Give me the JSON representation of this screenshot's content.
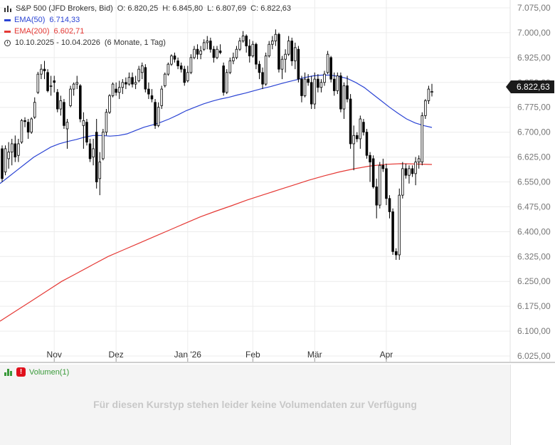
{
  "legend": {
    "instrument": "S&P 500 (JFD Brokers, Bid)",
    "open": "O: 6.820,25",
    "high": "H: 6.845,80",
    "low": "L: 6.807,69",
    "close": "C: 6.822,63",
    "ema50_label": "EMA(50)",
    "ema50_value": "6.714,33",
    "ema200_label": "EMA(200)",
    "ema200_value": "6.602,71",
    "range": "10.10.2025 - 10.04.2026",
    "period": "(6 Monate, 1 Tag)"
  },
  "colors": {
    "candle": "#000000",
    "ema50": "#2b44d4",
    "ema200": "#e53935",
    "grid": "#ececec",
    "volume": "#3a9a3a",
    "warning": "#e0101c"
  },
  "last_price_flag": "6.822,63",
  "volume_panel": {
    "title": "Volumen(1)",
    "message": "Für diesen Kurstyp stehen leider keine Volumendaten zur Verfügung"
  },
  "chart_data": {
    "type": "candlestick",
    "ylim": [
      6000,
      7100
    ],
    "y_ticks": [
      {
        "value": 7075,
        "label": "7.075,00"
      },
      {
        "value": 7000,
        "label": "7.000,00"
      },
      {
        "value": 6925,
        "label": "6.925,00"
      },
      {
        "value": 6850,
        "label": "6.850,00"
      },
      {
        "value": 6775,
        "label": "6.775,00"
      },
      {
        "value": 6700,
        "label": "6.700,00"
      },
      {
        "value": 6625,
        "label": "6.625,00"
      },
      {
        "value": 6550,
        "label": "6.550,00"
      },
      {
        "value": 6475,
        "label": "6.475,00"
      },
      {
        "value": 6400,
        "label": "6.400,00"
      },
      {
        "value": 6325,
        "label": "6.325,00"
      },
      {
        "value": 6250,
        "label": "6.250,00"
      },
      {
        "value": 6175,
        "label": "6.175,00"
      },
      {
        "value": 6100,
        "label": "6.100,00"
      },
      {
        "value": 6025,
        "label": "6.025,00"
      }
    ],
    "x_ticks": [
      {
        "date": "2025-11-01",
        "label": "Nov"
      },
      {
        "date": "2025-12-01",
        "label": "Dez"
      },
      {
        "date": "2026-01-01",
        "label": "Jan '26"
      },
      {
        "date": "2026-02-01",
        "label": "Feb"
      },
      {
        "date": "2026-03-01",
        "label": "Mär"
      },
      {
        "date": "2026-04-01",
        "label": "Apr"
      }
    ],
    "candles": [
      {
        "date": "2025-10-10",
        "o": 6650,
        "h": 6660,
        "l": 6550,
        "c": 6560
      },
      {
        "date": "2025-10-13",
        "o": 6580,
        "h": 6660,
        "l": 6570,
        "c": 6650
      },
      {
        "date": "2025-10-14",
        "o": 6620,
        "h": 6670,
        "l": 6590,
        "c": 6640
      },
      {
        "date": "2025-10-15",
        "o": 6640,
        "h": 6680,
        "l": 6600,
        "c": 6665
      },
      {
        "date": "2025-10-16",
        "o": 6665,
        "h": 6690,
        "l": 6610,
        "c": 6625
      },
      {
        "date": "2025-10-17",
        "o": 6630,
        "h": 6680,
        "l": 6610,
        "c": 6665
      },
      {
        "date": "2025-10-20",
        "o": 6670,
        "h": 6740,
        "l": 6665,
        "c": 6735
      },
      {
        "date": "2025-10-21",
        "o": 6735,
        "h": 6745,
        "l": 6715,
        "c": 6732
      },
      {
        "date": "2025-10-22",
        "o": 6730,
        "h": 6740,
        "l": 6680,
        "c": 6700
      },
      {
        "date": "2025-10-23",
        "o": 6700,
        "h": 6745,
        "l": 6695,
        "c": 6740
      },
      {
        "date": "2025-10-24",
        "o": 6745,
        "h": 6805,
        "l": 6740,
        "c": 6790
      },
      {
        "date": "2025-10-27",
        "o": 6820,
        "h": 6882,
        "l": 6815,
        "c": 6875
      },
      {
        "date": "2025-10-28",
        "o": 6875,
        "h": 6905,
        "l": 6860,
        "c": 6890
      },
      {
        "date": "2025-10-29",
        "o": 6890,
        "h": 6915,
        "l": 6860,
        "c": 6885
      },
      {
        "date": "2025-10-30",
        "o": 6880,
        "h": 6890,
        "l": 6820,
        "c": 6825
      },
      {
        "date": "2025-10-31",
        "o": 6840,
        "h": 6870,
        "l": 6810,
        "c": 6840
      },
      {
        "date": "2025-11-03",
        "o": 6855,
        "h": 6870,
        "l": 6820,
        "c": 6850
      },
      {
        "date": "2025-11-04",
        "o": 6820,
        "h": 6830,
        "l": 6760,
        "c": 6770
      },
      {
        "date": "2025-11-05",
        "o": 6770,
        "h": 6810,
        "l": 6750,
        "c": 6795
      },
      {
        "date": "2025-11-06",
        "o": 6790,
        "h": 6800,
        "l": 6710,
        "c": 6720
      },
      {
        "date": "2025-11-07",
        "o": 6710,
        "h": 6740,
        "l": 6650,
        "c": 6730
      },
      {
        "date": "2025-11-10",
        "o": 6780,
        "h": 6840,
        "l": 6775,
        "c": 6830
      },
      {
        "date": "2025-11-11",
        "o": 6830,
        "h": 6850,
        "l": 6810,
        "c": 6845
      },
      {
        "date": "2025-11-12",
        "o": 6845,
        "h": 6870,
        "l": 6830,
        "c": 6850
      },
      {
        "date": "2025-11-13",
        "o": 6840,
        "h": 6845,
        "l": 6730,
        "c": 6740
      },
      {
        "date": "2025-11-14",
        "o": 6720,
        "h": 6760,
        "l": 6650,
        "c": 6735
      },
      {
        "date": "2025-11-17",
        "o": 6730,
        "h": 6740,
        "l": 6660,
        "c": 6670
      },
      {
        "date": "2025-11-18",
        "o": 6665,
        "h": 6680,
        "l": 6610,
        "c": 6620
      },
      {
        "date": "2025-11-19",
        "o": 6625,
        "h": 6680,
        "l": 6600,
        "c": 6650
      },
      {
        "date": "2025-11-20",
        "o": 6700,
        "h": 6740,
        "l": 6530,
        "c": 6550
      },
      {
        "date": "2025-11-21",
        "o": 6560,
        "h": 6640,
        "l": 6510,
        "c": 6610
      },
      {
        "date": "2025-11-24",
        "o": 6620,
        "h": 6710,
        "l": 6615,
        "c": 6700
      },
      {
        "date": "2025-11-25",
        "o": 6700,
        "h": 6770,
        "l": 6690,
        "c": 6760
      },
      {
        "date": "2025-11-26",
        "o": 6760,
        "h": 6815,
        "l": 6755,
        "c": 6810
      },
      {
        "date": "2025-11-28",
        "o": 6810,
        "h": 6850,
        "l": 6805,
        "c": 6845
      },
      {
        "date": "2025-12-01",
        "o": 6830,
        "h": 6850,
        "l": 6810,
        "c": 6820
      },
      {
        "date": "2025-12-02",
        "o": 6820,
        "h": 6855,
        "l": 6800,
        "c": 6835
      },
      {
        "date": "2025-12-03",
        "o": 6835,
        "h": 6860,
        "l": 6815,
        "c": 6850
      },
      {
        "date": "2025-12-04",
        "o": 6850,
        "h": 6865,
        "l": 6830,
        "c": 6845
      },
      {
        "date": "2025-12-05",
        "o": 6845,
        "h": 6880,
        "l": 6840,
        "c": 6865
      },
      {
        "date": "2025-12-08",
        "o": 6865,
        "h": 6880,
        "l": 6835,
        "c": 6845
      },
      {
        "date": "2025-12-09",
        "o": 6845,
        "h": 6870,
        "l": 6830,
        "c": 6850
      },
      {
        "date": "2025-12-10",
        "o": 6855,
        "h": 6900,
        "l": 6850,
        "c": 6890
      },
      {
        "date": "2025-12-11",
        "o": 6880,
        "h": 6910,
        "l": 6860,
        "c": 6900
      },
      {
        "date": "2025-12-12",
        "o": 6895,
        "h": 6905,
        "l": 6820,
        "c": 6830
      },
      {
        "date": "2025-12-15",
        "o": 6830,
        "h": 6850,
        "l": 6800,
        "c": 6815
      },
      {
        "date": "2025-12-16",
        "o": 6810,
        "h": 6830,
        "l": 6790,
        "c": 6800
      },
      {
        "date": "2025-12-17",
        "o": 6790,
        "h": 6800,
        "l": 6710,
        "c": 6720
      },
      {
        "date": "2025-12-18",
        "o": 6720,
        "h": 6790,
        "l": 6715,
        "c": 6775
      },
      {
        "date": "2025-12-19",
        "o": 6780,
        "h": 6840,
        "l": 6770,
        "c": 6830
      },
      {
        "date": "2025-12-22",
        "o": 6840,
        "h": 6880,
        "l": 6835,
        "c": 6875
      },
      {
        "date": "2025-12-23",
        "o": 6875,
        "h": 6910,
        "l": 6870,
        "c": 6905
      },
      {
        "date": "2025-12-24",
        "o": 6905,
        "h": 6935,
        "l": 6900,
        "c": 6930
      },
      {
        "date": "2025-12-26",
        "o": 6930,
        "h": 6940,
        "l": 6910,
        "c": 6920
      },
      {
        "date": "2025-12-29",
        "o": 6915,
        "h": 6925,
        "l": 6890,
        "c": 6900
      },
      {
        "date": "2025-12-30",
        "o": 6900,
        "h": 6910,
        "l": 6880,
        "c": 6890
      },
      {
        "date": "2025-12-31",
        "o": 6890,
        "h": 6900,
        "l": 6840,
        "c": 6850
      },
      {
        "date": "2026-01-02",
        "o": 6855,
        "h": 6900,
        "l": 6850,
        "c": 6880
      },
      {
        "date": "2026-01-05",
        "o": 6880,
        "h": 6935,
        "l": 6875,
        "c": 6925
      },
      {
        "date": "2026-01-06",
        "o": 6925,
        "h": 6960,
        "l": 6920,
        "c": 6950
      },
      {
        "date": "2026-01-07",
        "o": 6950,
        "h": 6965,
        "l": 6920,
        "c": 6935
      },
      {
        "date": "2026-01-08",
        "o": 6935,
        "h": 6960,
        "l": 6920,
        "c": 6945
      },
      {
        "date": "2026-01-09",
        "o": 6950,
        "h": 6980,
        "l": 6945,
        "c": 6970
      },
      {
        "date": "2026-01-12",
        "o": 6970,
        "h": 6990,
        "l": 6950,
        "c": 6975
      },
      {
        "date": "2026-01-13",
        "o": 6975,
        "h": 6985,
        "l": 6940,
        "c": 6950
      },
      {
        "date": "2026-01-14",
        "o": 6950,
        "h": 6960,
        "l": 6910,
        "c": 6925
      },
      {
        "date": "2026-01-15",
        "o": 6925,
        "h": 6960,
        "l": 6920,
        "c": 6950
      },
      {
        "date": "2026-01-16",
        "o": 6945,
        "h": 6965,
        "l": 6935,
        "c": 6940
      },
      {
        "date": "2026-01-20",
        "o": 6900,
        "h": 6910,
        "l": 6810,
        "c": 6820
      },
      {
        "date": "2026-01-21",
        "o": 6820,
        "h": 6890,
        "l": 6815,
        "c": 6880
      },
      {
        "date": "2026-01-22",
        "o": 6880,
        "h": 6925,
        "l": 6875,
        "c": 6915
      },
      {
        "date": "2026-01-23",
        "o": 6915,
        "h": 6940,
        "l": 6905,
        "c": 6925
      },
      {
        "date": "2026-01-26",
        "o": 6925,
        "h": 6960,
        "l": 6920,
        "c": 6950
      },
      {
        "date": "2026-01-27",
        "o": 6950,
        "h": 6985,
        "l": 6945,
        "c": 6975
      },
      {
        "date": "2026-01-28",
        "o": 6975,
        "h": 7005,
        "l": 6970,
        "c": 6990
      },
      {
        "date": "2026-01-29",
        "o": 6990,
        "h": 6995,
        "l": 6940,
        "c": 6960
      },
      {
        "date": "2026-01-30",
        "o": 6960,
        "h": 6980,
        "l": 6910,
        "c": 6930
      },
      {
        "date": "2026-02-02",
        "o": 6930,
        "h": 6975,
        "l": 6925,
        "c": 6965
      },
      {
        "date": "2026-02-03",
        "o": 6965,
        "h": 6970,
        "l": 6890,
        "c": 6905
      },
      {
        "date": "2026-02-04",
        "o": 6905,
        "h": 6915,
        "l": 6860,
        "c": 6880
      },
      {
        "date": "2026-02-05",
        "o": 6880,
        "h": 6895,
        "l": 6830,
        "c": 6845
      },
      {
        "date": "2026-02-06",
        "o": 6845,
        "h": 6940,
        "l": 6840,
        "c": 6930
      },
      {
        "date": "2026-02-09",
        "o": 6930,
        "h": 6975,
        "l": 6925,
        "c": 6965
      },
      {
        "date": "2026-02-10",
        "o": 6965,
        "h": 6990,
        "l": 6950,
        "c": 6975
      },
      {
        "date": "2026-02-11",
        "o": 6975,
        "h": 7010,
        "l": 6960,
        "c": 6995
      },
      {
        "date": "2026-02-12",
        "o": 6995,
        "h": 7000,
        "l": 6880,
        "c": 6890
      },
      {
        "date": "2026-02-13",
        "o": 6890,
        "h": 6930,
        "l": 6860,
        "c": 6920
      },
      {
        "date": "2026-02-17",
        "o": 6920,
        "h": 6950,
        "l": 6880,
        "c": 6935
      },
      {
        "date": "2026-02-18",
        "o": 6935,
        "h": 6990,
        "l": 6930,
        "c": 6975
      },
      {
        "date": "2026-02-19",
        "o": 6975,
        "h": 6985,
        "l": 6900,
        "c": 6915
      },
      {
        "date": "2026-02-20",
        "o": 6915,
        "h": 6970,
        "l": 6890,
        "c": 6955
      },
      {
        "date": "2026-02-23",
        "o": 6950,
        "h": 6960,
        "l": 6850,
        "c": 6860
      },
      {
        "date": "2026-02-24",
        "o": 6860,
        "h": 6870,
        "l": 6790,
        "c": 6810
      },
      {
        "date": "2026-02-25",
        "o": 6810,
        "h": 6880,
        "l": 6805,
        "c": 6860
      },
      {
        "date": "2026-02-26",
        "o": 6860,
        "h": 6875,
        "l": 6840,
        "c": 6850
      },
      {
        "date": "2026-02-27",
        "o": 6850,
        "h": 6870,
        "l": 6770,
        "c": 6785
      },
      {
        "date": "2026-03-02",
        "o": 6785,
        "h": 6880,
        "l": 6770,
        "c": 6860
      },
      {
        "date": "2026-03-03",
        "o": 6860,
        "h": 6875,
        "l": 6820,
        "c": 6835
      },
      {
        "date": "2026-03-04",
        "o": 6835,
        "h": 6860,
        "l": 6820,
        "c": 6850
      },
      {
        "date": "2026-03-05",
        "o": 6850,
        "h": 6885,
        "l": 6840,
        "c": 6875
      },
      {
        "date": "2026-03-06",
        "o": 6880,
        "h": 6945,
        "l": 6875,
        "c": 6935
      },
      {
        "date": "2026-03-09",
        "o": 6925,
        "h": 6930,
        "l": 6850,
        "c": 6860
      },
      {
        "date": "2026-03-10",
        "o": 6860,
        "h": 6880,
        "l": 6810,
        "c": 6825
      },
      {
        "date": "2026-03-11",
        "o": 6825,
        "h": 6880,
        "l": 6815,
        "c": 6870
      },
      {
        "date": "2026-03-12",
        "o": 6870,
        "h": 6880,
        "l": 6760,
        "c": 6770
      },
      {
        "date": "2026-03-13",
        "o": 6770,
        "h": 6850,
        "l": 6740,
        "c": 6840
      },
      {
        "date": "2026-03-16",
        "o": 6840,
        "h": 6870,
        "l": 6790,
        "c": 6800
      },
      {
        "date": "2026-03-17",
        "o": 6800,
        "h": 6815,
        "l": 6650,
        "c": 6665
      },
      {
        "date": "2026-03-18",
        "o": 6665,
        "h": 6720,
        "l": 6585,
        "c": 6690
      },
      {
        "date": "2026-03-19",
        "o": 6690,
        "h": 6700,
        "l": 6670,
        "c": 6680
      },
      {
        "date": "2026-03-20",
        "o": 6680,
        "h": 6750,
        "l": 6650,
        "c": 6740
      },
      {
        "date": "2026-03-23",
        "o": 6730,
        "h": 6740,
        "l": 6690,
        "c": 6700
      },
      {
        "date": "2026-03-24",
        "o": 6700,
        "h": 6710,
        "l": 6620,
        "c": 6630
      },
      {
        "date": "2026-03-25",
        "o": 6630,
        "h": 6640,
        "l": 6550,
        "c": 6610
      },
      {
        "date": "2026-03-26",
        "o": 6620,
        "h": 6630,
        "l": 6530,
        "c": 6535
      },
      {
        "date": "2026-03-27",
        "o": 6535,
        "h": 6560,
        "l": 6440,
        "c": 6480
      },
      {
        "date": "2026-03-30",
        "o": 6480,
        "h": 6610,
        "l": 6470,
        "c": 6600
      },
      {
        "date": "2026-03-31",
        "o": 6600,
        "h": 6620,
        "l": 6580,
        "c": 6590
      },
      {
        "date": "2026-04-01",
        "o": 6590,
        "h": 6605,
        "l": 6480,
        "c": 6500
      },
      {
        "date": "2026-04-02",
        "o": 6500,
        "h": 6510,
        "l": 6440,
        "c": 6460
      },
      {
        "date": "2026-04-03",
        "o": 6460,
        "h": 6470,
        "l": 6330,
        "c": 6340
      },
      {
        "date": "2026-04-06",
        "o": 6340,
        "h": 6350,
        "l": 6315,
        "c": 6330
      },
      {
        "date": "2026-04-07",
        "o": 6330,
        "h": 6530,
        "l": 6315,
        "c": 6510
      },
      {
        "date": "2026-04-08",
        "o": 6510,
        "h": 6610,
        "l": 6500,
        "c": 6590
      },
      {
        "date": "2026-04-09",
        "o": 6590,
        "h": 6605,
        "l": 6560,
        "c": 6570
      },
      {
        "date": "2026-04-09b",
        "o": 6570,
        "h": 6600,
        "l": 6545,
        "c": 6590
      },
      {
        "date": "2026-04-09c",
        "o": 6590,
        "h": 6600,
        "l": 6565,
        "c": 6575
      },
      {
        "date": "2026-04-09d",
        "o": 6575,
        "h": 6625,
        "l": 6540,
        "c": 6610
      },
      {
        "date": "2026-04-09e",
        "o": 6610,
        "h": 6630,
        "l": 6590,
        "c": 6620
      },
      {
        "date": "2026-04-09f",
        "o": 6610,
        "h": 6760,
        "l": 6600,
        "c": 6750
      },
      {
        "date": "2026-04-09g",
        "o": 6750,
        "h": 6800,
        "l": 6740,
        "c": 6795
      },
      {
        "date": "2026-04-09h",
        "o": 6795,
        "h": 6840,
        "l": 6785,
        "c": 6830
      },
      {
        "date": "2026-04-10",
        "o": 6820.25,
        "h": 6845.8,
        "l": 6807.69,
        "c": 6822.63
      }
    ],
    "ema50": [
      6545,
      6565,
      6585,
      6605,
      6625,
      6640,
      6655,
      6665,
      6672,
      6678,
      6685,
      6690,
      6690,
      6688,
      6690,
      6695,
      6705,
      6715,
      6722,
      6730,
      6740,
      6752,
      6765,
      6775,
      6785,
      6793,
      6800,
      6805,
      6812,
      6818,
      6825,
      6832,
      6838,
      6845,
      6852,
      6858,
      6865,
      6870,
      6872,
      6872,
      6868,
      6862,
      6850,
      6835,
      6815,
      6795,
      6775,
      6757,
      6740,
      6728,
      6720,
      6714.33
    ],
    "ema200": [
      6130,
      6160,
      6190,
      6220,
      6250,
      6275,
      6300,
      6325,
      6345,
      6365,
      6385,
      6405,
      6425,
      6445,
      6462,
      6478,
      6495,
      6510,
      6525,
      6540,
      6555,
      6568,
      6580,
      6590,
      6598,
      6603,
      6605,
      6604,
      6602.71
    ]
  }
}
